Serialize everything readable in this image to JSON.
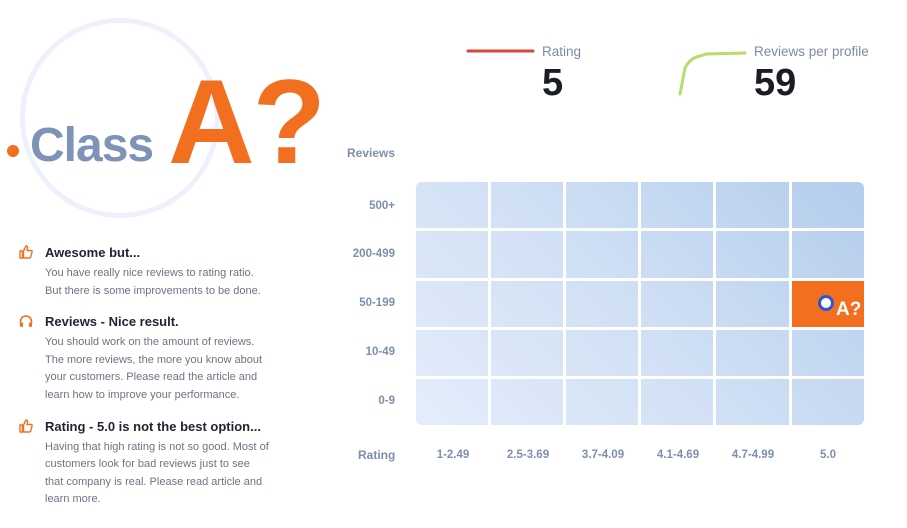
{
  "class_badge": {
    "prefix": "Class",
    "grade": "A?"
  },
  "legend": [
    {
      "label": "Rating",
      "value": "5",
      "color": "#d8453a"
    },
    {
      "label": "Reviews per profile",
      "value": "59",
      "color": "#b6dd6a"
    }
  ],
  "notes": [
    {
      "icon": "thumbs-up-icon",
      "title": "Awesome but...",
      "lines": [
        "You have really nice reviews to rating ratio.",
        "But there is some improvements to be done."
      ]
    },
    {
      "icon": "headphones-icon",
      "title": "Reviews - Nice result.",
      "lines": [
        "You should work on the amount of reviews.",
        "The more reviews, the more you know about",
        "your customers. Please read the article and",
        "learn how to improve your performance."
      ]
    },
    {
      "icon": "thumbs-up-icon",
      "title": "Rating - 5.0 is not the best option...",
      "lines": [
        "Having that high rating is not so good. Most of",
        "customers look for bad reviews just to see",
        "that company is real. Please read article and",
        "learn more."
      ]
    }
  ],
  "matrix": {
    "y_title": "Reviews",
    "x_title": "Rating",
    "rows": [
      "500+",
      "200-499",
      "50-199",
      "10-49",
      "0-9"
    ],
    "cols": [
      "1-2.49",
      "2.5-3.69",
      "3.7-4.09",
      "4.1-4.69",
      "4.7-4.99",
      "5.0"
    ],
    "highlight": {
      "row": "50-199",
      "col": "5.0",
      "label": "A?"
    },
    "highlight_color": "#f26f1f"
  }
}
